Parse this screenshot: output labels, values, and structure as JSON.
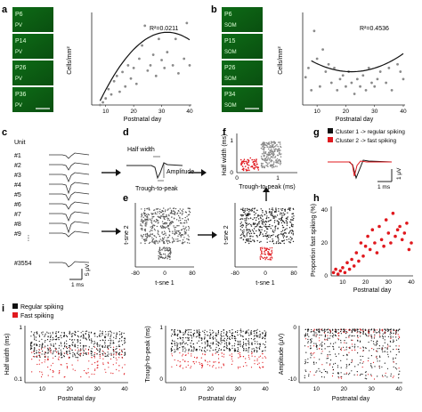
{
  "panels": {
    "a": {
      "letter": "a",
      "image_labels": [
        "P6",
        "P14",
        "P26",
        "P36"
      ],
      "image_tag": "PV",
      "scalebar": "100 μm",
      "ylabel": "Cells/mm²",
      "xlabel": "Postnatal day",
      "xticks": [
        "10",
        "20",
        "30",
        "40"
      ],
      "r2": "R²=0.0211"
    },
    "b": {
      "letter": "b",
      "image_labels": [
        "P6",
        "P15",
        "P26",
        "P34"
      ],
      "image_tag": "SOM",
      "scalebar": "100 μm",
      "ylabel": "Cells/mm²",
      "xlabel": "Postnatal day",
      "xticks": [
        "10",
        "20",
        "30",
        "40"
      ],
      "r2": "R²=0.4536"
    },
    "c": {
      "letter": "c",
      "title": "Unit",
      "units": [
        "#1",
        "#2",
        "#3",
        "#4",
        "#5",
        "#6",
        "#7",
        "#8",
        "#9"
      ],
      "ellipsis": "⋮",
      "last_unit": "#3554",
      "scale_ms": "1 ms",
      "scale_uv": "5 μV"
    },
    "d": {
      "letter": "d",
      "half_width": "Half width",
      "amplitude": "Amplitude",
      "trough": "Trough-to-peak"
    },
    "e": {
      "letter": "e",
      "xlabel": "t-sne 1",
      "ylabel": "t-sne 2",
      "xticks": [
        "-80",
        "0",
        "80"
      ]
    },
    "e2": {
      "xlabel": "t-sne 1",
      "ylabel": "t-sne 2",
      "xticks": [
        "-80",
        "0",
        "80"
      ]
    },
    "f": {
      "letter": "f",
      "ylabel": "Half width (ms)",
      "xlabel": "Trough-to-peak (ms)",
      "xticks": [
        "0",
        "1"
      ],
      "yticks": [
        "0",
        "1"
      ]
    },
    "g": {
      "letter": "g",
      "legend": [
        "Cluster 1 -> regular spiking",
        "Cluster 2 -> fast spiking"
      ],
      "scale_ms": "1 ms",
      "scale_uv": "1 μV"
    },
    "h": {
      "letter": "h",
      "ylabel": "Proportion fast spiking (%)",
      "xlabel": "Postnatal day",
      "xticks": [
        "10",
        "20",
        "30",
        "40"
      ],
      "yticks": [
        "0",
        "20",
        "40"
      ]
    },
    "i": {
      "letter": "i",
      "legend": [
        "Regular spiking",
        "Fast spiking"
      ],
      "xlabel": "Postnatal day",
      "xticks": [
        "10",
        "20",
        "30",
        "40"
      ],
      "sub": [
        {
          "ylabel": "Half width (ms)",
          "yticks": [
            "1",
            "0.1"
          ]
        },
        {
          "ylabel": "Trough-to-peak (ms)",
          "yticks": [
            "1",
            "0"
          ]
        },
        {
          "ylabel": "Amplitude (μV)",
          "yticks": [
            "0",
            "-10"
          ]
        }
      ]
    }
  },
  "colors": {
    "regular": "#111111",
    "fast": "#e0191e",
    "gray": "#8a8a8a",
    "micro_bg": "#0f7a1a",
    "micro_dark": "#0a4f10"
  },
  "chart_data": [
    {
      "panel": "a",
      "type": "scatter",
      "xlabel": "Postnatal day",
      "ylabel": "Cells/mm²",
      "xlim": [
        5,
        40
      ],
      "points": [
        [
          8,
          0
        ],
        [
          9,
          2
        ],
        [
          10,
          5
        ],
        [
          11,
          12
        ],
        [
          12,
          8
        ],
        [
          13,
          18
        ],
        [
          14,
          22
        ],
        [
          15,
          10
        ],
        [
          16,
          25
        ],
        [
          17,
          14
        ],
        [
          18,
          30
        ],
        [
          19,
          20
        ],
        [
          20,
          28
        ],
        [
          21,
          16
        ],
        [
          22,
          35
        ],
        [
          23,
          45
        ],
        [
          24,
          60
        ],
        [
          25,
          26
        ],
        [
          26,
          30
        ],
        [
          27,
          38
        ],
        [
          28,
          22
        ],
        [
          29,
          50
        ],
        [
          30,
          34
        ],
        [
          31,
          28
        ],
        [
          32,
          40
        ],
        [
          34,
          30
        ],
        [
          35,
          50
        ],
        [
          36,
          24
        ],
        [
          38,
          35
        ],
        [
          39,
          62
        ],
        [
          40,
          30
        ]
      ],
      "fit_curve": true,
      "annotation": "R²=0.0211"
    },
    {
      "panel": "b",
      "type": "scatter",
      "xlabel": "Postnatal day",
      "ylabel": "Cells/mm²",
      "xlim": [
        5,
        40
      ],
      "points": [
        [
          6,
          15
        ],
        [
          7,
          20
        ],
        [
          8,
          8
        ],
        [
          9,
          40
        ],
        [
          10,
          25
        ],
        [
          11,
          10
        ],
        [
          12,
          30
        ],
        [
          13,
          18
        ],
        [
          14,
          22
        ],
        [
          15,
          12
        ],
        [
          16,
          20
        ],
        [
          17,
          8
        ],
        [
          18,
          14
        ],
        [
          19,
          16
        ],
        [
          20,
          10
        ],
        [
          21,
          18
        ],
        [
          22,
          12
        ],
        [
          23,
          6
        ],
        [
          24,
          14
        ],
        [
          25,
          10
        ],
        [
          26,
          16
        ],
        [
          27,
          8
        ],
        [
          28,
          20
        ],
        [
          29,
          12
        ],
        [
          30,
          10
        ],
        [
          31,
          14
        ],
        [
          32,
          18
        ],
        [
          34,
          12
        ],
        [
          35,
          20
        ],
        [
          36,
          8
        ],
        [
          38,
          22
        ],
        [
          39,
          18
        ],
        [
          40,
          14
        ]
      ],
      "fit_curve": true,
      "annotation": "R²=0.4536"
    },
    {
      "panel": "f",
      "type": "scatter",
      "xlabel": "Trough-to-peak (ms)",
      "ylabel": "Half width (ms)",
      "xlim": [
        0,
        1.5
      ],
      "ylim": [
        0,
        1.2
      ],
      "series": [
        {
          "name": "Cluster 1 -> regular spiking",
          "color": "#8a8a8a",
          "x_range": [
            0.6,
            1.1
          ],
          "y_range": [
            0.15,
            0.95
          ],
          "count": 220
        },
        {
          "name": "Cluster 2 -> fast spiking",
          "color": "#e0191e",
          "x_range": [
            0.1,
            0.55
          ],
          "y_range": [
            0.05,
            0.45
          ],
          "count": 70
        }
      ]
    },
    {
      "panel": "h",
      "type": "scatter",
      "xlabel": "Postnatal day",
      "ylabel": "Proportion fast spiking (%)",
      "xlim": [
        5,
        40
      ],
      "ylim": [
        0,
        40
      ],
      "points": [
        [
          6,
          2
        ],
        [
          7,
          4
        ],
        [
          8,
          1
        ],
        [
          9,
          3
        ],
        [
          10,
          5
        ],
        [
          11,
          2
        ],
        [
          12,
          8
        ],
        [
          13,
          4
        ],
        [
          14,
          10
        ],
        [
          15,
          6
        ],
        [
          16,
          14
        ],
        [
          17,
          9
        ],
        [
          18,
          20
        ],
        [
          19,
          12
        ],
        [
          20,
          18
        ],
        [
          21,
          24
        ],
        [
          22,
          16
        ],
        [
          23,
          28
        ],
        [
          24,
          20
        ],
        [
          25,
          14
        ],
        [
          26,
          30
        ],
        [
          27,
          22
        ],
        [
          28,
          18
        ],
        [
          29,
          34
        ],
        [
          30,
          26
        ],
        [
          31,
          20
        ],
        [
          32,
          38
        ],
        [
          33,
          24
        ],
        [
          34,
          28
        ],
        [
          35,
          30
        ],
        [
          36,
          22
        ],
        [
          37,
          26
        ],
        [
          38,
          32
        ],
        [
          39,
          16
        ],
        [
          40,
          20
        ]
      ]
    }
  ]
}
